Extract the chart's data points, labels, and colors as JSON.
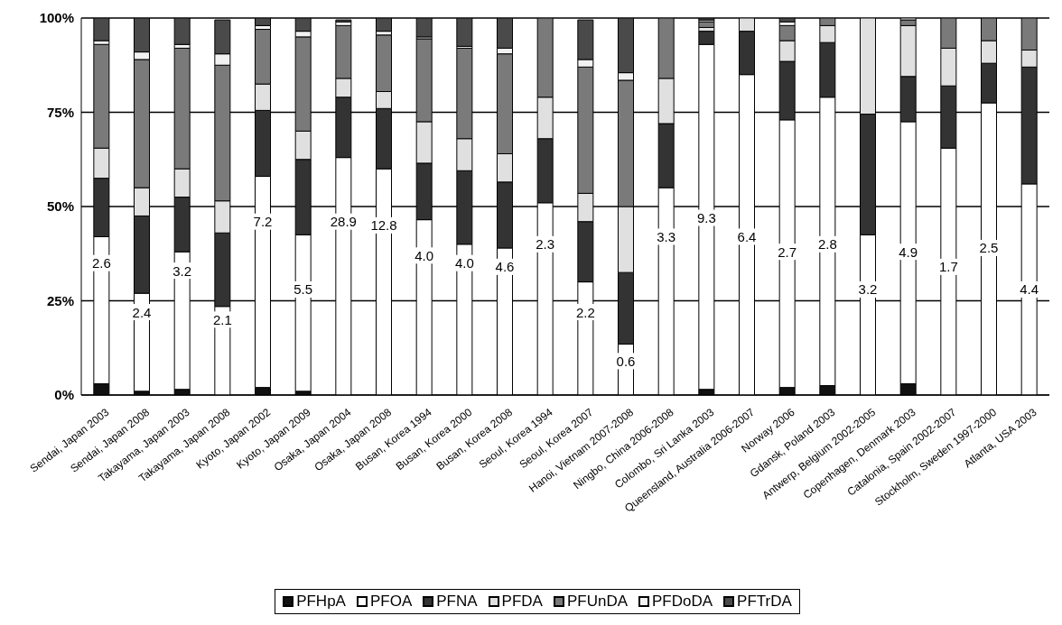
{
  "chart_data": {
    "type": "bar",
    "stacked": true,
    "categories": [
      "Sendai, Japan 2003",
      "Sendai, Japan 2008",
      "Takayama, Japan 2003",
      "Takayama, Japan 2008",
      "Kyoto, Japan 2002",
      "Kyoto, Japan 2009",
      "Osaka, Japan 2004",
      "Osaka, Japan 2008",
      "Busan, Korea 1994",
      "Busan, Korea 2000",
      "Busan, Korea 2008",
      "Seoul, Korea 1994",
      "Seoul, Korea 2007",
      "Hanoi, Vietnam 2007-2008",
      "Ningbo, China 2006-2008",
      "Colombo, Sri Lanka 2003",
      "Queensland, Australia 2006-2007",
      "Norway 2006",
      "Gdansk, Poland 2003",
      "Antwerp, Belgium 2002-2005",
      "Copenhagen, Denmark 2003",
      "Catalonia, Spain 2002-2007",
      "Stockholm, Sweden 1997-2000",
      "Atlanta, USA 2003"
    ],
    "series": [
      {
        "name": "PFHpA",
        "color": "#111111",
        "values": [
          3,
          1,
          1.5,
          null,
          2,
          1,
          null,
          0,
          0,
          0,
          0,
          0,
          null,
          0,
          0,
          1.5,
          0,
          2,
          2.5,
          0,
          3,
          0,
          0,
          0
        ]
      },
      {
        "name": "PFOA",
        "color": "#ffffff",
        "values": [
          39,
          26,
          36.5,
          23.5,
          56,
          41.5,
          63,
          60,
          46.5,
          40,
          39,
          51,
          30,
          13.5,
          55,
          91.5,
          85,
          71,
          76.5,
          42.5,
          69.5,
          65.5,
          77.5,
          56
        ]
      },
      {
        "name": "PFNA",
        "color": "#333333",
        "values": [
          15.5,
          20.5,
          14.5,
          19.5,
          17.5,
          20,
          16,
          16,
          15,
          19.5,
          17.5,
          17,
          16,
          19,
          17,
          3.5,
          11.5,
          15.5,
          14.5,
          32,
          12,
          16.5,
          10.5,
          31
        ]
      },
      {
        "name": "PFDA",
        "color": "#e0e0e0",
        "values": [
          8,
          7.5,
          7.5,
          8.5,
          7,
          7.5,
          5,
          4.5,
          11,
          8.5,
          7.5,
          11,
          7.5,
          17.5,
          12,
          1,
          3.5,
          5.5,
          4.5,
          25.5,
          13.5,
          10,
          6,
          4.5
        ]
      },
      {
        "name": "PFUnDA",
        "color": "#7a7a7a",
        "values": [
          27.5,
          34,
          32,
          36,
          14.5,
          25,
          14,
          15,
          22,
          24,
          26.5,
          21,
          33.5,
          33.5,
          16,
          1.5,
          0,
          4,
          2,
          0,
          1.5,
          8,
          6,
          8.5
        ]
      },
      {
        "name": "PFDoDA",
        "color": "#f2f2f2",
        "values": [
          1,
          2,
          1,
          3,
          1,
          1.5,
          1,
          1,
          0.5,
          0.5,
          1.5,
          0,
          2,
          2,
          0,
          0.5,
          0,
          1,
          0,
          0,
          0.5,
          0,
          0,
          0
        ]
      },
      {
        "name": "PFTrDA",
        "color": "#4a4a4a",
        "values": [
          6,
          9,
          7,
          9,
          2,
          3.5,
          0.5,
          3.5,
          5,
          7.5,
          8,
          0,
          10.5,
          14.5,
          0,
          0.5,
          0,
          1,
          0,
          0,
          0,
          0,
          0,
          0
        ]
      }
    ],
    "ylim": [
      0,
      100
    ],
    "yticks": [
      {
        "value": 0,
        "label": "0%"
      },
      {
        "value": 25,
        "label": "25%"
      },
      {
        "value": 50,
        "label": "50%"
      },
      {
        "value": 75,
        "label": "75%"
      },
      {
        "value": 100,
        "label": "100%"
      }
    ],
    "grid": "y",
    "legend": "bottom",
    "annotations": [
      {
        "text": "2.6",
        "x": "Sendai, Japan 2003",
        "y": 35
      },
      {
        "text": "2.4",
        "x": "Sendai, Japan 2008",
        "y": 22
      },
      {
        "text": "3.2",
        "x": "Takayama, Japan 2003",
        "y": 33
      },
      {
        "text": "2.1",
        "x": "Takayama, Japan 2008",
        "y": 20
      },
      {
        "text": "7.2",
        "x": "Kyoto, Japan 2002",
        "y": 46
      },
      {
        "text": "5.5",
        "x": "Kyoto, Japan 2009",
        "y": 28
      },
      {
        "text": "28.9",
        "x": "Osaka, Japan 2004",
        "y": 46
      },
      {
        "text": "12.8",
        "x": "Osaka, Japan 2008",
        "y": 45
      },
      {
        "text": "4.0",
        "x": "Busan, Korea 1994",
        "y": 37
      },
      {
        "text": "4.0",
        "x": "Busan, Korea 2000",
        "y": 35
      },
      {
        "text": "4.6",
        "x": "Busan, Korea 2008",
        "y": 34
      },
      {
        "text": "2.3",
        "x": "Seoul, Korea 1994",
        "y": 40
      },
      {
        "text": "2.2",
        "x": "Seoul, Korea 2007",
        "y": 22
      },
      {
        "text": "0.6",
        "x": "Hanoi, Vietnam 2007-2008",
        "y": 9
      },
      {
        "text": "3.3",
        "x": "Ningbo, China 2006-2008",
        "y": 42
      },
      {
        "text": "9.3",
        "x": "Colombo, Sri Lanka 2003",
        "y": 47
      },
      {
        "text": "6.4",
        "x": "Queensland, Australia 2006-2007",
        "y": 42
      },
      {
        "text": "2.7",
        "x": "Norway 2006",
        "y": 38
      },
      {
        "text": "2.8",
        "x": "Gdansk, Poland 2003",
        "y": 40
      },
      {
        "text": "3.2",
        "x": "Antwerp, Belgium 2002-2005",
        "y": 28
      },
      {
        "text": "4.9",
        "x": "Copenhagen, Denmark 2003",
        "y": 38
      },
      {
        "text": "1.7",
        "x": "Catalonia, Spain 2002-2007",
        "y": 34
      },
      {
        "text": "2.5",
        "x": "Stockholm, Sweden 1997-2000",
        "y": 39
      },
      {
        "text": "4.4",
        "x": "Atlanta, USA 2003",
        "y": 28
      }
    ]
  }
}
